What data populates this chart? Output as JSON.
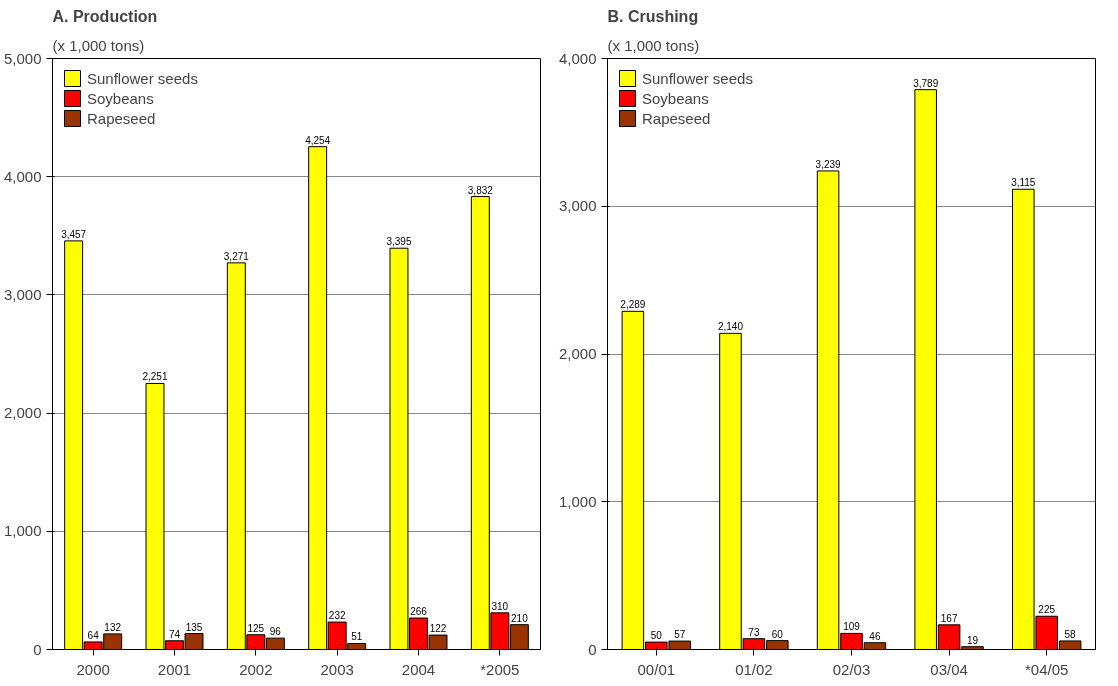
{
  "chart_data": [
    {
      "type": "bar",
      "title": "A. Production",
      "subtitle": "(x 1,000 tons)",
      "categories": [
        "2000",
        "2001",
        "2002",
        "2003",
        "2004",
        "*2005"
      ],
      "series": [
        {
          "name": "Sunflower seeds",
          "color": "#ffff00",
          "values": [
            3457,
            2251,
            3271,
            4254,
            3395,
            3832
          ],
          "value_labels": [
            "3,457",
            "2,251",
            "3,271",
            "4,254",
            "3,395",
            "3,832"
          ]
        },
        {
          "name": "Soybeans",
          "color": "#ff0000",
          "values": [
            64,
            74,
            125,
            232,
            266,
            310
          ],
          "value_labels": [
            "64",
            "74",
            "125",
            "232",
            "266",
            "310"
          ]
        },
        {
          "name": "Rapeseed",
          "color": "#993300",
          "values": [
            132,
            135,
            96,
            51,
            122,
            210
          ],
          "value_labels": [
            "132",
            "135",
            "96",
            "51",
            "122",
            "210"
          ]
        }
      ],
      "ylim": [
        0,
        5000
      ],
      "yticks": [
        {
          "value": 0,
          "label": "0"
        },
        {
          "value": 1000,
          "label": "1,000"
        },
        {
          "value": 2000,
          "label": "2,000"
        },
        {
          "value": 3000,
          "label": "3,000"
        },
        {
          "value": 4000,
          "label": "4,000"
        },
        {
          "value": 5000,
          "label": "5,000"
        }
      ],
      "grid": "y",
      "legend": "top left"
    },
    {
      "type": "bar",
      "title": "B. Crushing",
      "subtitle": "(x 1,000 tons)",
      "categories": [
        "00/01",
        "01/02",
        "02/03",
        "03/04",
        "*04/05"
      ],
      "series": [
        {
          "name": "Sunflower seeds",
          "color": "#ffff00",
          "values": [
            2289,
            2140,
            3239,
            3789,
            3115
          ],
          "value_labels": [
            "2,289",
            "2,140",
            "3,239",
            "3,789",
            "3,115"
          ]
        },
        {
          "name": "Soybeans",
          "color": "#ff0000",
          "values": [
            50,
            73,
            109,
            167,
            225
          ],
          "value_labels": [
            "50",
            "73",
            "109",
            "167",
            "225"
          ]
        },
        {
          "name": "Rapeseed",
          "color": "#993300",
          "values": [
            57,
            60,
            46,
            19,
            58
          ],
          "value_labels": [
            "57",
            "60",
            "46",
            "19",
            "58"
          ]
        }
      ],
      "ylim": [
        0,
        4000
      ],
      "yticks": [
        {
          "value": 0,
          "label": "0"
        },
        {
          "value": 1000,
          "label": "1,000"
        },
        {
          "value": 2000,
          "label": "2,000"
        },
        {
          "value": 3000,
          "label": "3,000"
        },
        {
          "value": 4000,
          "label": "4,000"
        }
      ],
      "grid": "y",
      "legend": "top left"
    }
  ]
}
